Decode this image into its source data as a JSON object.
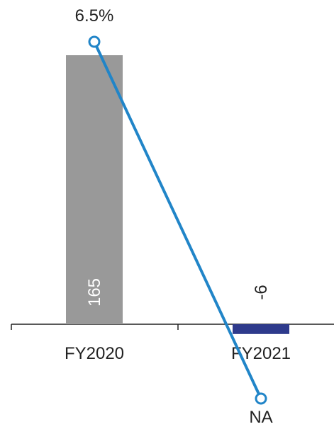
{
  "chart_data": {
    "type": "bar",
    "categories": [
      "FY2020",
      "FY2021"
    ],
    "series": [
      {
        "type": "bar",
        "values": [
          165,
          -6
        ],
        "value_labels": [
          "165",
          "-6"
        ],
        "colors": [
          "#999999",
          "#2e3a8c"
        ]
      },
      {
        "type": "line",
        "values": [
          6.5,
          null
        ],
        "value_labels": [
          "6.5%",
          "NA"
        ],
        "color": "#2185c8"
      }
    ],
    "title": "",
    "xlabel": "",
    "ylabel": "",
    "grid": false,
    "legend": "none"
  }
}
